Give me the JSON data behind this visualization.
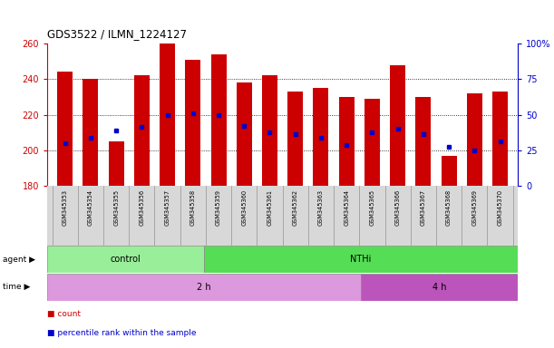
{
  "title": "GDS3522 / ILMN_1224127",
  "samples": [
    "GSM345353",
    "GSM345354",
    "GSM345355",
    "GSM345356",
    "GSM345357",
    "GSM345358",
    "GSM345359",
    "GSM345360",
    "GSM345361",
    "GSM345362",
    "GSM345363",
    "GSM345364",
    "GSM345365",
    "GSM345366",
    "GSM345367",
    "GSM345368",
    "GSM345369",
    "GSM345370"
  ],
  "bar_tops": [
    244,
    240,
    205,
    242,
    260,
    251,
    254,
    238,
    242,
    233,
    235,
    230,
    229,
    248,
    230,
    197,
    232,
    233
  ],
  "bar_bottoms": [
    180,
    180,
    180,
    180,
    180,
    180,
    180,
    180,
    180,
    180,
    180,
    180,
    180,
    180,
    180,
    180,
    180,
    180
  ],
  "dot_values": [
    204,
    207,
    211,
    213,
    220,
    221,
    220,
    214,
    210,
    209,
    207,
    203,
    210,
    212,
    209,
    202,
    200,
    205
  ],
  "ylim_left": [
    180,
    260
  ],
  "ylim_right": [
    0,
    100
  ],
  "yticks_left": [
    180,
    200,
    220,
    240,
    260
  ],
  "yticks_right": [
    0,
    25,
    50,
    75,
    100
  ],
  "yticklabels_right": [
    "0",
    "25",
    "50",
    "75",
    "100%"
  ],
  "bar_color": "#cc0000",
  "dot_color": "#0000cc",
  "grid_color": "#000000",
  "axis_color_left": "#cc0000",
  "axis_color_right": "#0000cc",
  "agent_groups": [
    {
      "label": "control",
      "start": 0,
      "end": 6,
      "color": "#99ee99"
    },
    {
      "label": "NTHi",
      "start": 6,
      "end": 18,
      "color": "#55dd55"
    }
  ],
  "time_groups": [
    {
      "label": "2 h",
      "start": 0,
      "end": 12,
      "color": "#dd99dd"
    },
    {
      "label": "4 h",
      "start": 12,
      "end": 18,
      "color": "#bb55bb"
    }
  ],
  "agent_label": "agent ▶",
  "time_label": "time ▶",
  "legend_items": [
    {
      "color": "#cc0000",
      "label": "count"
    },
    {
      "color": "#0000cc",
      "label": "percentile rank within the sample"
    }
  ],
  "background_color": "#ffffff",
  "plot_bg_color": "#ffffff",
  "tick_label_bg": "#d8d8d8"
}
